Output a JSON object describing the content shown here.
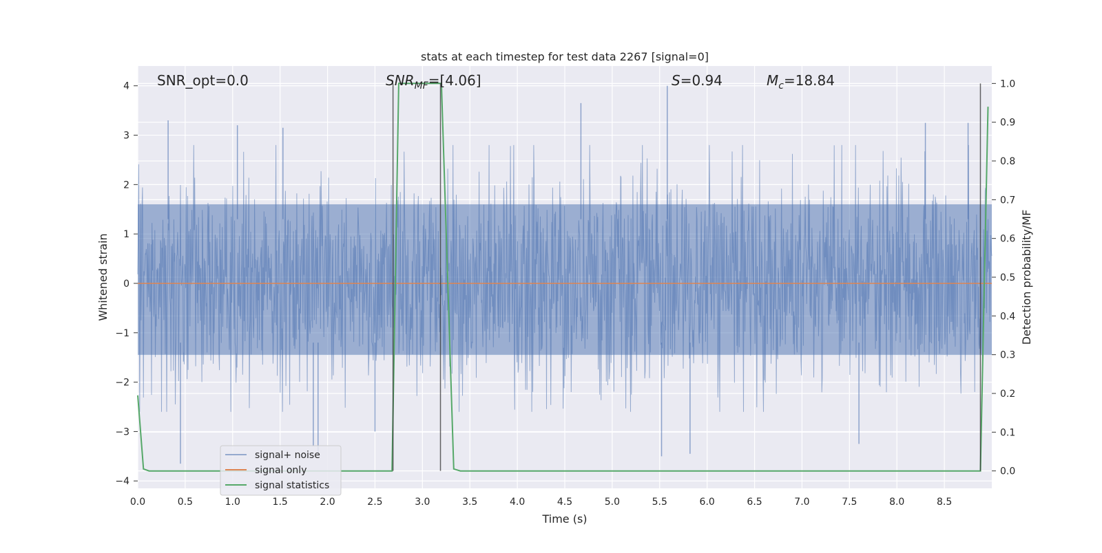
{
  "chart_data": {
    "type": "line",
    "title": "stats at each timestep for test data 2267 [signal=0]",
    "xlabel": "Time (s)",
    "ylabel_left": "Whitened strain",
    "ylabel_right": "Detection probability/MF",
    "xlim": [
      0.0,
      9.0
    ],
    "ylim_left": [
      -4.15,
      4.4
    ],
    "ylim_right": [
      -0.045,
      1.045
    ],
    "x_ticks": [
      0.0,
      0.5,
      1.0,
      1.5,
      2.0,
      2.5,
      3.0,
      3.5,
      4.0,
      4.5,
      5.0,
      5.5,
      6.0,
      6.5,
      7.0,
      7.5,
      8.0,
      8.5
    ],
    "x_tick_labels": [
      "0.0",
      "0.5",
      "1.0",
      "1.5",
      "2.0",
      "2.5",
      "3.0",
      "3.5",
      "4.0",
      "4.5",
      "5.0",
      "5.5",
      "6.0",
      "6.5",
      "7.0",
      "7.5",
      "8.0",
      "8.5"
    ],
    "y_left_ticks": [
      -4,
      -3,
      -2,
      -1,
      0,
      1,
      2,
      3,
      4
    ],
    "y_left_tick_labels": [
      "−4",
      "−3",
      "−2",
      "−1",
      "0",
      "1",
      "2",
      "3",
      "4"
    ],
    "y_right_ticks": [
      0.0,
      0.1,
      0.2,
      0.3,
      0.4,
      0.5,
      0.6,
      0.7,
      0.8,
      0.9,
      1.0
    ],
    "y_right_tick_labels": [
      "0.0",
      "0.1",
      "0.2",
      "0.3",
      "0.4",
      "0.5",
      "0.6",
      "0.7",
      "0.8",
      "0.9",
      "1.0"
    ],
    "grid": true,
    "legend_position": "lower-left",
    "annotations": {
      "snr_opt": "SNR_opt=0.0",
      "snr_mf_main": "SNR",
      "snr_mf_sub": "MF",
      "snr_mf_value": "=[4.06]",
      "s_main": "S",
      "s_value": "=0.94",
      "mc_main": "M",
      "mc_sub": "c",
      "mc_value": "=18.84"
    },
    "vertical_lines": [
      2.69,
      3.19,
      8.88
    ],
    "series": [
      {
        "name": "signal+ noise",
        "color": "#4c72b0",
        "axis": "left",
        "x_range": [
          0.0,
          9.0
        ],
        "envelope_band": [
          -1.45,
          1.6
        ],
        "peaks": [
          {
            "x": 0.32,
            "y": 3.3
          },
          {
            "x": 0.45,
            "y": -3.65
          },
          {
            "x": 1.05,
            "y": 3.2
          },
          {
            "x": 1.53,
            "y": 3.15
          },
          {
            "x": 1.85,
            "y": -3.3
          },
          {
            "x": 1.9,
            "y": -3.45
          },
          {
            "x": 2.5,
            "y": -3.0
          },
          {
            "x": 4.67,
            "y": 3.65
          },
          {
            "x": 5.52,
            "y": -3.5
          },
          {
            "x": 5.58,
            "y": 4.0
          },
          {
            "x": 5.82,
            "y": -3.45
          },
          {
            "x": 7.6,
            "y": -3.25
          },
          {
            "x": 8.3,
            "y": 3.25
          },
          {
            "x": 8.75,
            "y": 3.25
          }
        ]
      },
      {
        "name": "signal only",
        "color": "#dd8452",
        "axis": "left",
        "x": [
          0.0,
          9.0
        ],
        "y": [
          0.0,
          0.0
        ]
      },
      {
        "name": "signal statistics",
        "color": "#55a868",
        "axis": "right",
        "x": [
          0.0,
          0.06,
          0.12,
          0.5,
          1.0,
          1.5,
          2.0,
          2.5,
          2.68,
          2.75,
          2.8,
          3.0,
          3.2,
          3.33,
          3.4,
          3.5,
          4.0,
          5.0,
          6.0,
          7.0,
          8.0,
          8.5,
          8.88,
          8.96
        ],
        "y": [
          0.195,
          0.005,
          0.0,
          0.0,
          0.0,
          0.0,
          0.0,
          0.0,
          0.0,
          1.0,
          1.0,
          1.0,
          1.0,
          0.005,
          0.0,
          0.0,
          0.0,
          0.0,
          0.0,
          0.0,
          0.0,
          0.0,
          0.0,
          0.94
        ]
      }
    ]
  }
}
